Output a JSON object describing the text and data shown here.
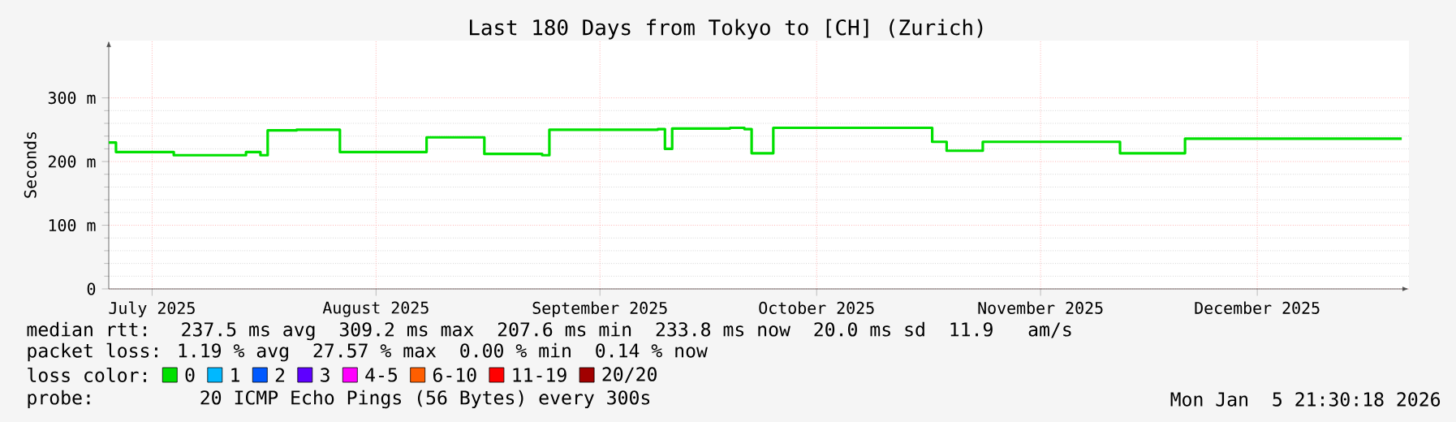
{
  "chart_data": {
    "type": "step",
    "title": "Last 180 Days from Tokyo to [CH] (Zurich)",
    "ylabel": "Seconds",
    "xlim": [
      "2025-07-10",
      "2026-01-06"
    ],
    "xticks": [
      {
        "value": "2025-07-16",
        "label": "July 2025"
      },
      {
        "value": "2025-08-16",
        "label": "August 2025"
      },
      {
        "value": "2025-09-16",
        "label": "September 2025"
      },
      {
        "value": "2025-10-16",
        "label": "October 2025"
      },
      {
        "value": "2025-11-16",
        "label": "November 2025"
      },
      {
        "value": "2025-12-16",
        "label": "December 2025"
      }
    ],
    "ylim": [
      0,
      390
    ],
    "yticks": [
      0,
      {
        "value": 100,
        "label": "100 m"
      },
      {
        "value": 200,
        "label": "200 m"
      },
      {
        "value": 300,
        "label": "300 m"
      }
    ],
    "grid": true,
    "legend": "bottom",
    "legend_title": "loss color:",
    "x": [
      "2025-07-10",
      "2025-07-11",
      "2025-07-17",
      "2025-07-19",
      "2025-07-27",
      "2025-07-29",
      "2025-07-31",
      "2025-08-01",
      "2025-08-05",
      "2025-08-10",
      "2025-08-11",
      "2025-08-16",
      "2025-08-19",
      "2025-08-20",
      "2025-08-22",
      "2025-08-23",
      "2025-08-30",
      "2025-08-31",
      "2025-09-03",
      "2025-09-08",
      "2025-09-09",
      "2025-09-24",
      "2025-09-25",
      "2025-09-26",
      "2025-10-04",
      "2025-10-06",
      "2025-10-07",
      "2025-10-09",
      "2025-10-10",
      "2025-10-31",
      "2025-11-01",
      "2025-11-03",
      "2025-11-07",
      "2025-11-08",
      "2025-11-16",
      "2025-11-26",
      "2025-11-27",
      "2025-12-05",
      "2025-12-06",
      "2025-12-13",
      "2025-12-24",
      "2026-01-05"
    ],
    "series": [
      {
        "name": "0",
        "color": "#00e000",
        "values": [
          230,
          215,
          215,
          210,
          210,
          215,
          210,
          249,
          250,
          250,
          215,
          215,
          215,
          215,
          215,
          238,
          238,
          212,
          212,
          210,
          250,
          251,
          220,
          252,
          253,
          251,
          213,
          213,
          253,
          253,
          231,
          217,
          217,
          231,
          231,
          231,
          213,
          213,
          236,
          236,
          236,
          236
        ]
      },
      {
        "name": "1",
        "color": "#00b8ff",
        "values": [
          null,
          null,
          null,
          null,
          null,
          null,
          null,
          null,
          null,
          null,
          null,
          null,
          null,
          null,
          null,
          null,
          null,
          null,
          null,
          null,
          null,
          null,
          null,
          null,
          null,
          null,
          null,
          null,
          null,
          null,
          null,
          null,
          null,
          null,
          null,
          null,
          null,
          null,
          null,
          null,
          null,
          null
        ]
      },
      {
        "name": "2",
        "color": "#0059ff",
        "values": [
          null,
          null,
          null,
          null,
          null,
          null,
          null,
          null,
          null,
          null,
          null,
          null,
          null,
          null,
          null,
          null,
          null,
          null,
          null,
          null,
          null,
          null,
          null,
          null,
          null,
          null,
          null,
          null,
          null,
          null,
          null,
          null,
          null,
          null,
          null,
          null,
          null,
          null,
          null,
          null,
          null,
          null
        ]
      },
      {
        "name": "3",
        "color": "#5e00ff",
        "values": [
          null,
          null,
          null,
          null,
          null,
          null,
          null,
          null,
          null,
          null,
          null,
          null,
          null,
          null,
          null,
          null,
          null,
          null,
          null,
          null,
          null,
          null,
          null,
          null,
          null,
          null,
          null,
          null,
          null,
          null,
          null,
          null,
          null,
          null,
          null,
          null,
          null,
          null,
          null,
          null,
          null,
          null
        ]
      },
      {
        "name": "4-5",
        "color": "#ff00fe",
        "values": [
          null,
          null,
          null,
          null,
          null,
          null,
          null,
          null,
          null,
          null,
          null,
          null,
          null,
          null,
          null,
          null,
          null,
          null,
          null,
          null,
          null,
          null,
          null,
          null,
          null,
          null,
          null,
          null,
          null,
          null,
          null,
          null,
          null,
          null,
          null,
          null,
          null,
          null,
          null,
          null,
          null,
          null
        ]
      },
      {
        "name": "6-10",
        "color": "#ff5e00",
        "values": [
          null,
          null,
          null,
          null,
          null,
          null,
          null,
          null,
          null,
          null,
          null,
          null,
          null,
          null,
          null,
          null,
          null,
          null,
          null,
          null,
          null,
          null,
          null,
          null,
          null,
          null,
          null,
          null,
          null,
          null,
          null,
          null,
          null,
          null,
          null,
          null,
          null,
          null,
          null,
          null,
          null,
          null
        ]
      },
      {
        "name": "11-19",
        "color": "#ff0000",
        "values": [
          null,
          null,
          null,
          null,
          null,
          null,
          null,
          null,
          null,
          null,
          null,
          null,
          null,
          null,
          null,
          null,
          null,
          null,
          null,
          null,
          null,
          null,
          null,
          null,
          null,
          null,
          null,
          null,
          null,
          null,
          null,
          null,
          null,
          null,
          null,
          null,
          null,
          null,
          null,
          null,
          null,
          null
        ]
      },
      {
        "name": "20/20",
        "color": "#a10000",
        "values": [
          null,
          null,
          null,
          null,
          null,
          null,
          null,
          null,
          null,
          null,
          null,
          null,
          null,
          null,
          null,
          null,
          null,
          null,
          null,
          null,
          null,
          null,
          null,
          null,
          null,
          null,
          null,
          null,
          null,
          null,
          null,
          null,
          null,
          null,
          null,
          null,
          null,
          null,
          null,
          null,
          null,
          null
        ]
      }
    ],
    "annotations": [
      "median rtt:  237.5 ms avg  309.2 ms max  207.6 ms min  233.8 ms now  20.0 ms sd  11.9   am/s",
      "packet loss: 1.19 % avg  27.57 % max  0.00 % min  0.14 % now",
      "probe:       20 ICMP Echo Pings (56 Bytes) every 300s",
      "Mon Jan  5 21:30:18 2026"
    ]
  }
}
